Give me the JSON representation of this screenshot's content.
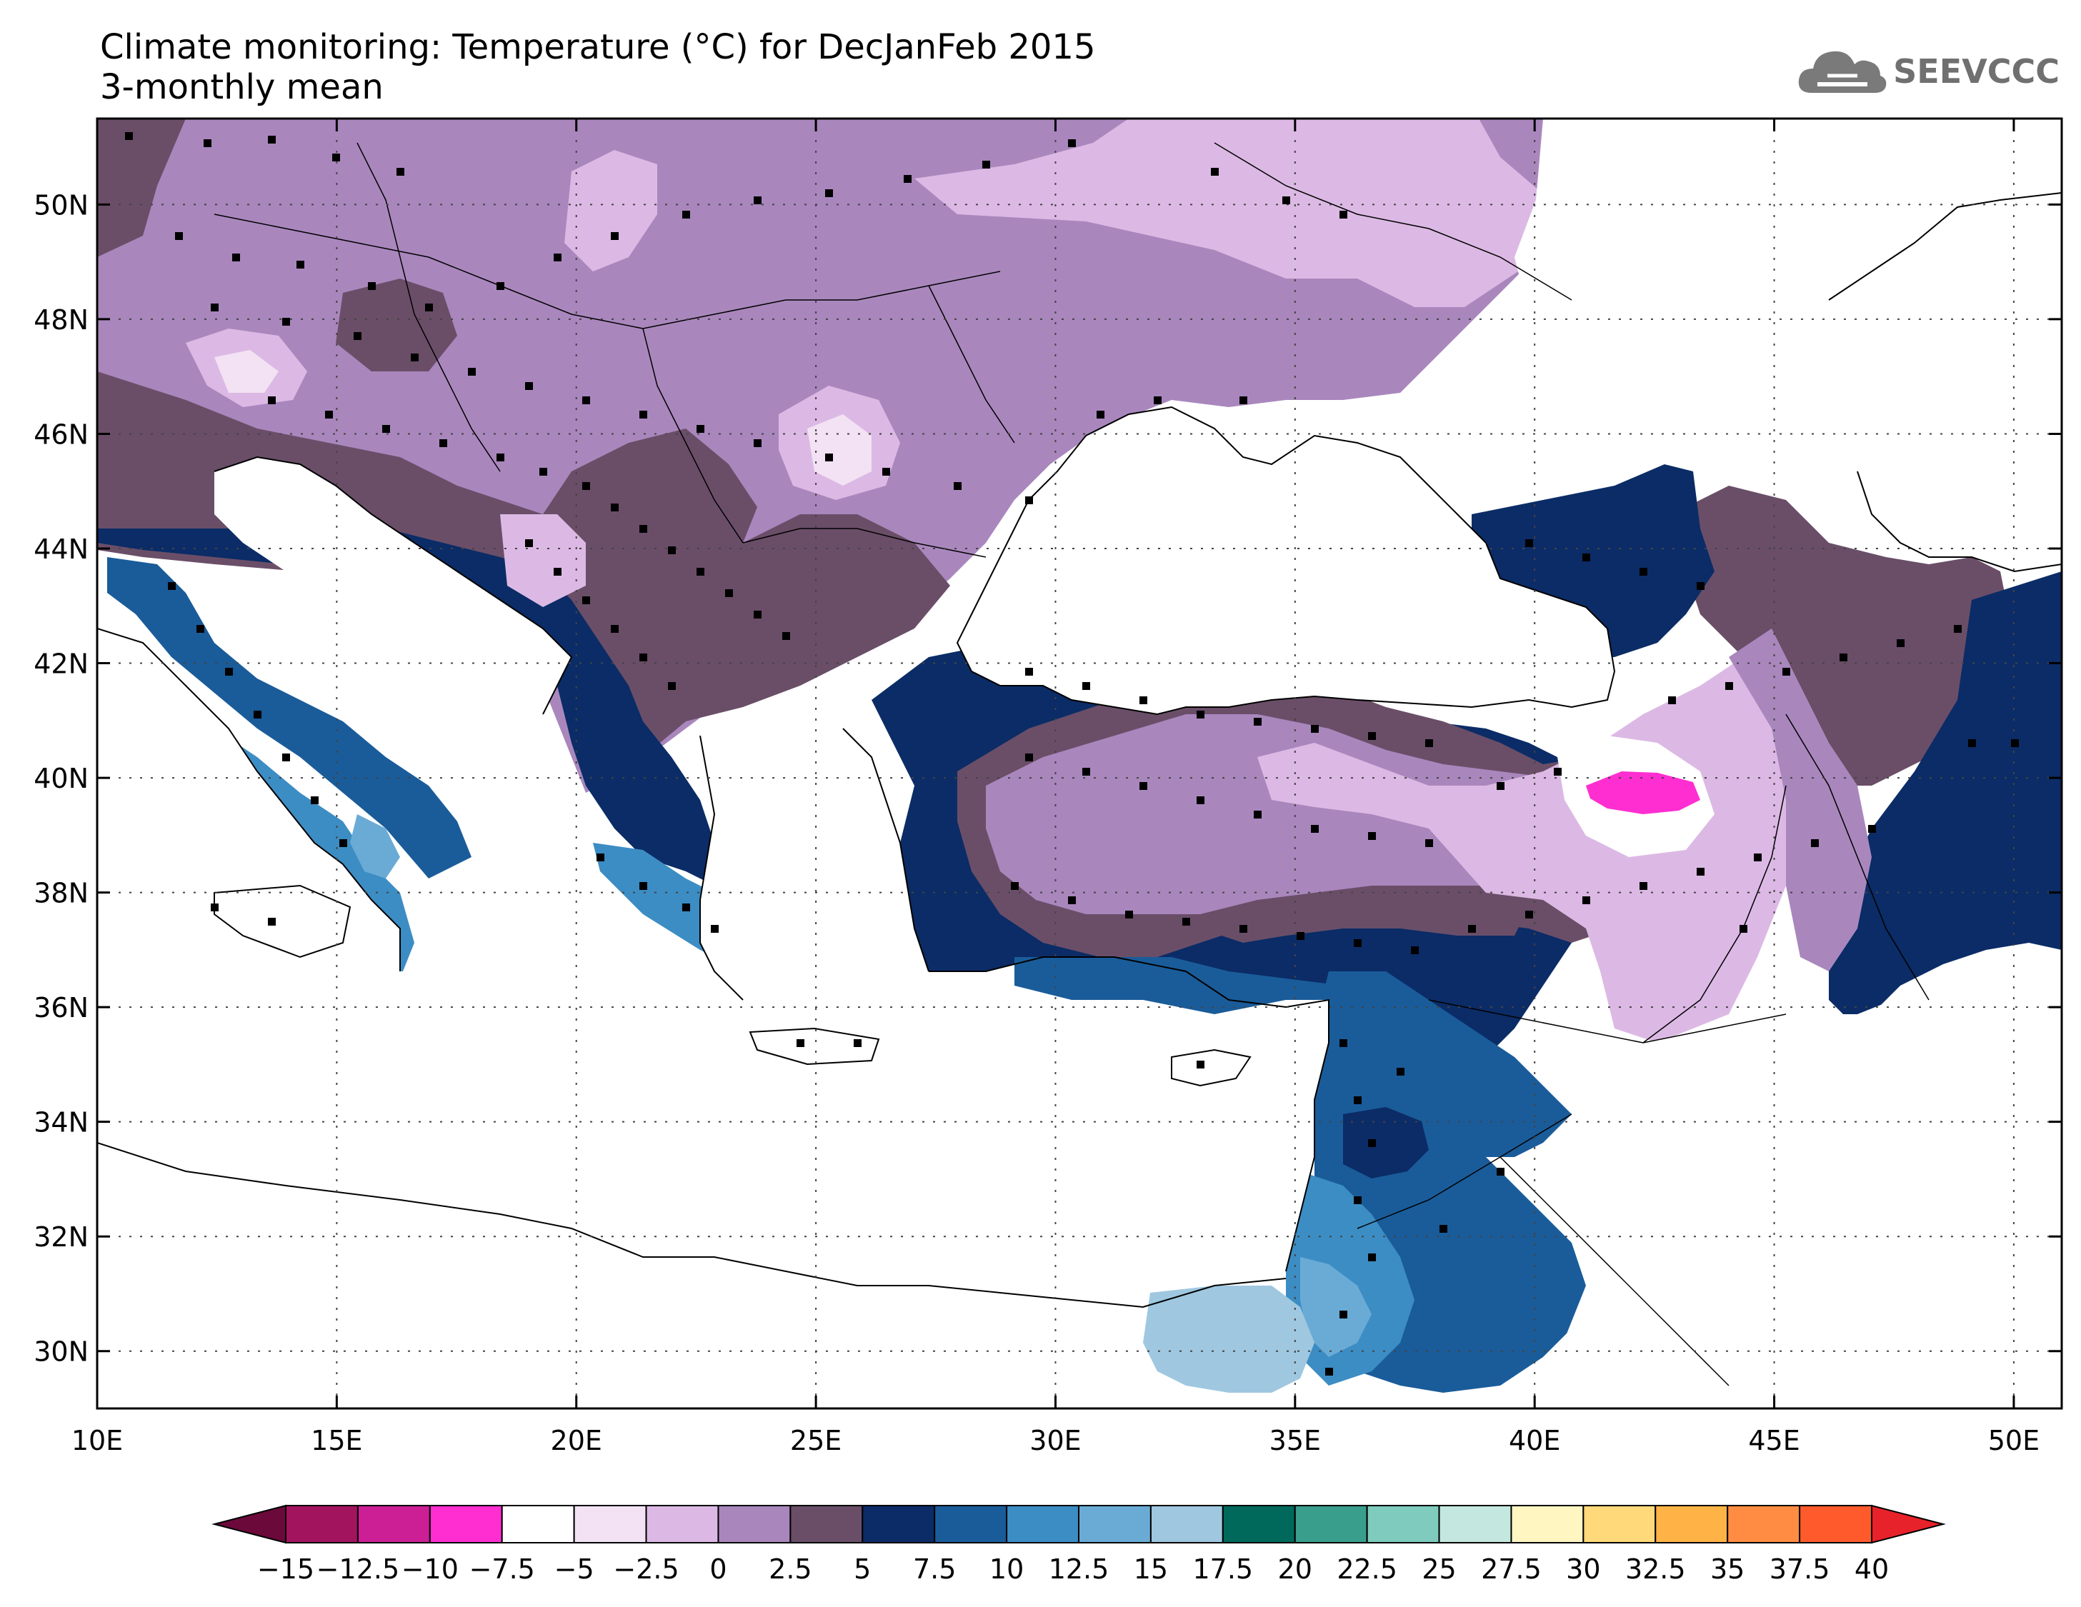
{
  "header": {
    "title": "Climate monitoring: Temperature (°C) for DecJanFeb 2015",
    "subtitle": "3-monthly mean"
  },
  "logo": {
    "text": "SEEVCCC",
    "icon": "cloud-icon"
  },
  "map": {
    "lon_range": [
      10,
      51
    ],
    "lat_range": [
      29,
      51.5
    ],
    "lon_ticks": [
      "10E",
      "15E",
      "20E",
      "25E",
      "30E",
      "35E",
      "40E",
      "45E",
      "50E"
    ],
    "lat_ticks": [
      "30N",
      "32N",
      "34N",
      "36N",
      "38N",
      "40N",
      "42N",
      "44N",
      "46N",
      "48N",
      "50N"
    ],
    "gridlines": "dotted"
  },
  "colorbar": {
    "labels": [
      "-15",
      "-12.5",
      "-10",
      "-7.5",
      "-5",
      "-2.5",
      "0",
      "2.5",
      "5",
      "7.5",
      "10",
      "12.5",
      "15",
      "17.5",
      "20",
      "22.5",
      "25",
      "27.5",
      "30",
      "32.5",
      "35",
      "37.5",
      "40"
    ],
    "colors": [
      "#6b0a3a",
      "#a3145f",
      "#cc1f96",
      "#ff2ed1",
      "#ffffff",
      "#f2e2f4",
      "#dcb9e4",
      "#a987bd",
      "#6a4e68",
      "#0b2c66",
      "#1a5c9a",
      "#3c8dc4",
      "#6aabd6",
      "#9fc8e0",
      "#00695c",
      "#3a9e8c",
      "#7fccbe",
      "#c4e8e0",
      "#fff6c2",
      "#ffd97a",
      "#ffb347",
      "#ff8c42",
      "#ff5a2c",
      "#e8222a"
    ],
    "left_end_color": "#6b0a3a",
    "right_end_color": "#e8222a"
  }
}
